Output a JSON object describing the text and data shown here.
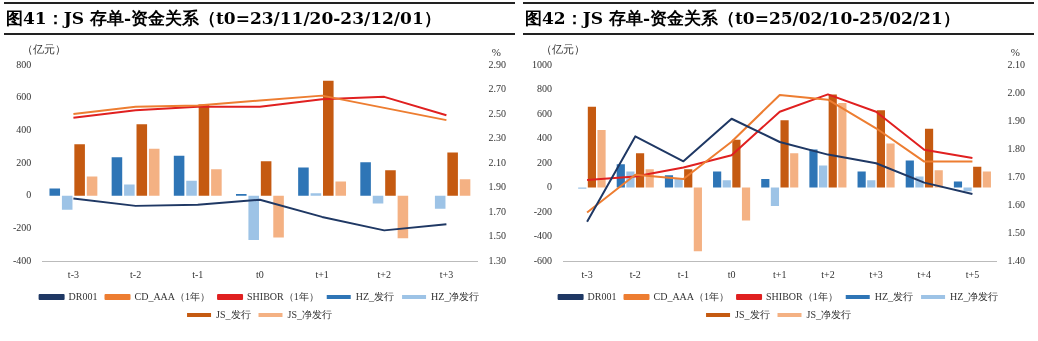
{
  "chart_data": [
    {
      "type": "bar",
      "title": "图41：JS 存单-资金关系（t0=23/11/20-23/12/01）",
      "ylabel": "（亿元）",
      "y2label": "%",
      "categories": [
        "t-3",
        "t-2",
        "t-1",
        "t0",
        "t+1",
        "t+2",
        "t+3"
      ],
      "series": [
        {
          "name": "HZ_发行",
          "color": "#2e75b6",
          "values": [
            44,
            235,
            245,
            10,
            172,
            205,
            0
          ]
        },
        {
          "name": "HZ_净发行",
          "color": "#9dc3e6",
          "values": [
            -86,
            69,
            92,
            -271,
            15,
            -48,
            -80
          ]
        },
        {
          "name": "JS_发行",
          "color": "#c55a11",
          "values": [
            315,
            438,
            558,
            210,
            703,
            155,
            264
          ]
        },
        {
          "name": "JS_净发行",
          "color": "#f4b183",
          "values": [
            117,
            287,
            162,
            -256,
            86,
            -260,
            101
          ]
        },
        {
          "name": "DR001",
          "type": "line",
          "axis": "y2",
          "color": "#1f3864",
          "values": [
            1.81,
            1.75,
            1.76,
            1.8,
            1.66,
            1.55,
            1.6
          ]
        },
        {
          "name": "CD_AAA（1年）",
          "type": "line",
          "axis": "y2",
          "color": "#ed7d31",
          "values": [
            2.5,
            2.56,
            2.57,
            2.61,
            2.65,
            2.55,
            2.45
          ]
        },
        {
          "name": "SHIBOR（1年）",
          "type": "line",
          "axis": "y2",
          "color": "#e02020",
          "values": [
            2.47,
            2.53,
            2.56,
            2.56,
            2.62,
            2.64,
            2.49
          ]
        }
      ],
      "ylim": [
        -400,
        800
      ],
      "yticks": [
        -400,
        -200,
        0,
        200,
        400,
        600,
        800
      ],
      "y2lim": [
        1.3,
        2.9
      ],
      "y2ticks": [
        {
          "value": 1.3,
          "label": "1.30"
        },
        {
          "value": 1.5,
          "label": "1.50"
        },
        {
          "value": 1.7,
          "label": "1.70"
        },
        {
          "value": 1.9,
          "label": "1.90"
        },
        {
          "value": 2.1,
          "label": "2.10"
        },
        {
          "value": 2.3,
          "label": "2.30"
        },
        {
          "value": 2.5,
          "label": "2.50"
        },
        {
          "value": 2.7,
          "label": "2.70"
        },
        {
          "value": 2.9,
          "label": "2.90"
        }
      ],
      "grid": false,
      "legend": "bottom",
      "marker": "none",
      "line_style": "solid"
    },
    {
      "type": "bar",
      "title": "图42：JS 存单-资金关系（t0=25/02/10-25/02/21）",
      "ylabel": "（亿元）",
      "y2label": "%",
      "categories": [
        "t-3",
        "t-2",
        "t-1",
        "t0",
        "t+1",
        "t+2",
        "t+3",
        "t+4",
        "t+5"
      ],
      "series": [
        {
          "name": "HZ_发行",
          "color": "#2e75b6",
          "values": [
            0,
            190,
            100,
            130,
            70,
            310,
            130,
            220,
            50
          ]
        },
        {
          "name": "HZ_净发行",
          "color": "#9dc3e6",
          "values": [
            -10,
            130,
            70,
            60,
            -150,
            180,
            60,
            90,
            -30
          ]
        },
        {
          "name": "JS_发行",
          "color": "#c55a11",
          "values": [
            660,
            280,
            150,
            390,
            550,
            760,
            630,
            480,
            170
          ]
        },
        {
          "name": "JS_净发行",
          "color": "#f4b183",
          "values": [
            470,
            150,
            -520,
            -270,
            280,
            690,
            360,
            140,
            130
          ]
        },
        {
          "name": "DR001",
          "type": "line",
          "axis": "y2",
          "color": "#1f3864",
          "values": [
            1.54,
            1.845,
            1.756,
            1.908,
            1.825,
            1.78,
            1.749,
            1.68,
            1.639
          ]
        },
        {
          "name": "CD_AAA（1年）",
          "type": "line",
          "axis": "y2",
          "color": "#ed7d31",
          "values": [
            1.573,
            1.708,
            1.693,
            1.826,
            1.993,
            1.976,
            1.874,
            1.755,
            1.755
          ]
        },
        {
          "name": "SHIBOR（1年）",
          "type": "line",
          "axis": "y2",
          "color": "#e02020",
          "values": [
            1.689,
            1.702,
            1.734,
            1.778,
            1.933,
            1.995,
            1.933,
            1.797,
            1.768
          ]
        }
      ],
      "ylim": [
        -600,
        1000
      ],
      "yticks": [
        -600,
        -400,
        -200,
        0,
        200,
        400,
        600,
        800,
        1000
      ],
      "y2lim": [
        1.4,
        2.1
      ],
      "y2ticks": [
        {
          "value": 1.4,
          "label": "1.40"
        },
        {
          "value": 1.5,
          "label": "1.50"
        },
        {
          "value": 1.6,
          "label": "1.60"
        },
        {
          "value": 1.7,
          "label": "1.70"
        },
        {
          "value": 1.8,
          "label": "1.80"
        },
        {
          "value": 1.9,
          "label": "1.90"
        },
        {
          "value": 2.0,
          "label": "2.00"
        },
        {
          "value": 2.1,
          "label": "2.10"
        }
      ],
      "grid": false,
      "legend": "bottom",
      "marker": "none",
      "line_style": "solid"
    }
  ]
}
